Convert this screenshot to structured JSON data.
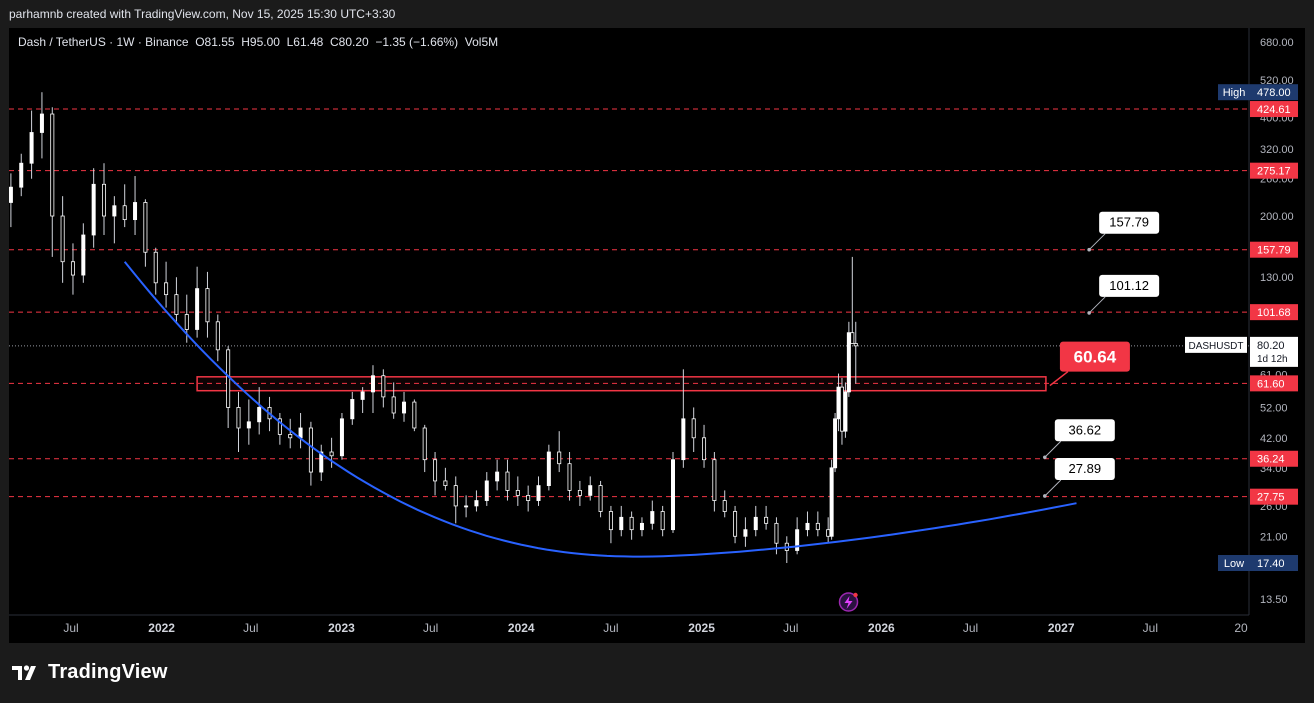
{
  "header": {
    "author_line": "parhamnb created with TradingView.com, Nov 15, 2025 15:30 UTC+3:30"
  },
  "legend": {
    "symbol": "Dash / TetherUS · 1W · Binance",
    "open": "O81.55",
    "high": "H95.00",
    "low": "L61.48",
    "close": "C80.20",
    "change": "−1.35 (−1.66%)",
    "volume": "Vol5M"
  },
  "brand": {
    "name": "TradingView"
  },
  "colors": {
    "background": "#000000",
    "candle": "#ffffff",
    "level_line": "#f23645",
    "label_red": "#f23645",
    "curve": "#2962ff",
    "axis_text": "#b2b5be",
    "high_low_badge": "#1e3a6e"
  },
  "chart_data": {
    "type": "candlestick",
    "symbol": "DASHUSDT",
    "interval": "1W",
    "log_scale": true,
    "ylim": [
      12.5,
      720
    ],
    "price_axis_ticks": [
      680,
      520,
      400,
      320,
      260,
      200,
      130,
      52,
      42,
      34,
      26,
      21,
      13.5
    ],
    "price_axis_labels": [
      "680.00",
      "520.00",
      "400.00",
      "320.00",
      "260.00",
      "200.00",
      "130.00",
      "52.00",
      "42.00",
      "34.00",
      "26.00",
      "21.00",
      "13.50"
    ],
    "time_axis_labels": [
      "Jul",
      "2022",
      "Jul",
      "2023",
      "Jul",
      "2024",
      "Jul",
      "2025",
      "Jul",
      "2026",
      "Jul",
      "2027",
      "Jul",
      "20"
    ],
    "time_axis_dates": [
      "2021-07-01",
      "2022-01-01",
      "2022-07-01",
      "2023-01-01",
      "2023-07-01",
      "2024-01-01",
      "2024-07-01",
      "2025-01-01",
      "2025-07-01",
      "2026-01-01",
      "2026-07-01",
      "2027-01-01",
      "2027-07-01",
      "2028-01-01"
    ],
    "bold_time_labels": [
      "2022",
      "2023",
      "2024",
      "2025",
      "2026",
      "2027"
    ],
    "horizontal_levels": [
      {
        "price": 424.61,
        "label": "424.61"
      },
      {
        "price": 275.17,
        "label": "275.17"
      },
      {
        "price": 157.79,
        "label": "157.79"
      },
      {
        "price": 101.68,
        "label": "101.68"
      },
      {
        "price": 61.6,
        "label": "61.60"
      },
      {
        "price": 36.24,
        "label": "36.24"
      },
      {
        "price": 27.75,
        "label": "27.75"
      }
    ],
    "current_price": {
      "symbol": "DASHUSDT",
      "price": 80.2,
      "label": "80.20",
      "countdown": "1d 12h"
    },
    "high_marker": {
      "title": "High",
      "price": 478.0,
      "label": "478.00"
    },
    "low_marker": {
      "title": "Low",
      "price": 17.4,
      "label": "17.40"
    },
    "partial_axis_label": "61.00",
    "resistance_zone": {
      "start": "2022-03-14",
      "end": "2026-12-01",
      "low": 58.5,
      "high": 64.5
    },
    "target_callouts": [
      {
        "label": "157.79",
        "price": 157.79,
        "date": "2027-03-15"
      },
      {
        "label": "101.12",
        "price": 101.12,
        "date": "2027-03-15"
      },
      {
        "label": "36.62",
        "price": 36.62,
        "date": "2026-12-15"
      },
      {
        "label": "27.89",
        "price": 27.89,
        "date": "2026-12-15"
      }
    ],
    "zone_callout": {
      "label": "60.64",
      "price": 60.64,
      "date": "2026-12-01"
    },
    "cup_curve": {
      "start_date": "2021-10-18",
      "start_price": 145,
      "bottom_date": "2024-09-01",
      "bottom_price": 18.2,
      "end_date": "2027-02-01",
      "end_price": 26.5
    },
    "candles": [
      {
        "date": "2021-03-01",
        "o": 220,
        "h": 270,
        "l": 185,
        "c": 245
      },
      {
        "date": "2021-03-22",
        "o": 245,
        "h": 310,
        "l": 230,
        "c": 290
      },
      {
        "date": "2021-04-12",
        "o": 290,
        "h": 420,
        "l": 260,
        "c": 360
      },
      {
        "date": "2021-05-03",
        "o": 360,
        "h": 478,
        "l": 300,
        "c": 410
      },
      {
        "date": "2021-05-24",
        "o": 410,
        "h": 430,
        "l": 150,
        "c": 200
      },
      {
        "date": "2021-06-14",
        "o": 200,
        "h": 230,
        "l": 125,
        "c": 145
      },
      {
        "date": "2021-07-05",
        "o": 145,
        "h": 165,
        "l": 115,
        "c": 132
      },
      {
        "date": "2021-07-26",
        "o": 132,
        "h": 190,
        "l": 125,
        "c": 175
      },
      {
        "date": "2021-08-16",
        "o": 175,
        "h": 280,
        "l": 160,
        "c": 250
      },
      {
        "date": "2021-09-06",
        "o": 250,
        "h": 290,
        "l": 175,
        "c": 200
      },
      {
        "date": "2021-09-27",
        "o": 200,
        "h": 230,
        "l": 165,
        "c": 215
      },
      {
        "date": "2021-10-18",
        "o": 215,
        "h": 250,
        "l": 185,
        "c": 195
      },
      {
        "date": "2021-11-08",
        "o": 195,
        "h": 265,
        "l": 175,
        "c": 220
      },
      {
        "date": "2021-11-29",
        "o": 220,
        "h": 225,
        "l": 140,
        "c": 155
      },
      {
        "date": "2021-12-20",
        "o": 155,
        "h": 160,
        "l": 115,
        "c": 125
      },
      {
        "date": "2022-01-10",
        "o": 125,
        "h": 145,
        "l": 105,
        "c": 115
      },
      {
        "date": "2022-01-31",
        "o": 115,
        "h": 130,
        "l": 95,
        "c": 100
      },
      {
        "date": "2022-02-21",
        "o": 100,
        "h": 115,
        "l": 82,
        "c": 90
      },
      {
        "date": "2022-03-14",
        "o": 90,
        "h": 140,
        "l": 85,
        "c": 120
      },
      {
        "date": "2022-04-04",
        "o": 120,
        "h": 135,
        "l": 85,
        "c": 95
      },
      {
        "date": "2022-04-25",
        "o": 95,
        "h": 100,
        "l": 72,
        "c": 78
      },
      {
        "date": "2022-05-16",
        "o": 78,
        "h": 80,
        "l": 45,
        "c": 52
      },
      {
        "date": "2022-06-06",
        "o": 52,
        "h": 58,
        "l": 38,
        "c": 45
      },
      {
        "date": "2022-06-27",
        "o": 45,
        "h": 55,
        "l": 40,
        "c": 47
      },
      {
        "date": "2022-07-18",
        "o": 47,
        "h": 60,
        "l": 43,
        "c": 52
      },
      {
        "date": "2022-08-08",
        "o": 52,
        "h": 56,
        "l": 44,
        "c": 48
      },
      {
        "date": "2022-08-29",
        "o": 48,
        "h": 50,
        "l": 40,
        "c": 43
      },
      {
        "date": "2022-09-19",
        "o": 43,
        "h": 48,
        "l": 39,
        "c": 42
      },
      {
        "date": "2022-10-10",
        "o": 42,
        "h": 50,
        "l": 39,
        "c": 45
      },
      {
        "date": "2022-10-31",
        "o": 45,
        "h": 47,
        "l": 30,
        "c": 33
      },
      {
        "date": "2022-11-21",
        "o": 33,
        "h": 40,
        "l": 31,
        "c": 38
      },
      {
        "date": "2022-12-12",
        "o": 38,
        "h": 42,
        "l": 34,
        "c": 37
      },
      {
        "date": "2023-01-02",
        "o": 37,
        "h": 50,
        "l": 36,
        "c": 48
      },
      {
        "date": "2023-01-23",
        "o": 48,
        "h": 58,
        "l": 46,
        "c": 55
      },
      {
        "date": "2023-02-13",
        "o": 55,
        "h": 60,
        "l": 50,
        "c": 58
      },
      {
        "date": "2023-03-06",
        "o": 58,
        "h": 70,
        "l": 50,
        "c": 65
      },
      {
        "date": "2023-03-27",
        "o": 65,
        "h": 68,
        "l": 52,
        "c": 56
      },
      {
        "date": "2023-04-17",
        "o": 56,
        "h": 62,
        "l": 48,
        "c": 50
      },
      {
        "date": "2023-05-08",
        "o": 50,
        "h": 58,
        "l": 47,
        "c": 54
      },
      {
        "date": "2023-05-29",
        "o": 54,
        "h": 55,
        "l": 44,
        "c": 45
      },
      {
        "date": "2023-06-19",
        "o": 45,
        "h": 46,
        "l": 33,
        "c": 36
      },
      {
        "date": "2023-07-10",
        "o": 36,
        "h": 38,
        "l": 28,
        "c": 31
      },
      {
        "date": "2023-07-31",
        "o": 31,
        "h": 34,
        "l": 29,
        "c": 30
      },
      {
        "date": "2023-08-21",
        "o": 30,
        "h": 32,
        "l": 23,
        "c": 26
      },
      {
        "date": "2023-09-11",
        "o": 26,
        "h": 28,
        "l": 24,
        "c": 26
      },
      {
        "date": "2023-10-02",
        "o": 26,
        "h": 29,
        "l": 25,
        "c": 27
      },
      {
        "date": "2023-10-23",
        "o": 27,
        "h": 33,
        "l": 26,
        "c": 31
      },
      {
        "date": "2023-11-13",
        "o": 31,
        "h": 36,
        "l": 29,
        "c": 33
      },
      {
        "date": "2023-12-04",
        "o": 33,
        "h": 36,
        "l": 27,
        "c": 29
      },
      {
        "date": "2023-12-25",
        "o": 29,
        "h": 32,
        "l": 26,
        "c": 28
      },
      {
        "date": "2024-01-15",
        "o": 28,
        "h": 30,
        "l": 25,
        "c": 27
      },
      {
        "date": "2024-02-05",
        "o": 27,
        "h": 32,
        "l": 26,
        "c": 30
      },
      {
        "date": "2024-02-26",
        "o": 30,
        "h": 40,
        "l": 29,
        "c": 38
      },
      {
        "date": "2024-03-18",
        "o": 38,
        "h": 44,
        "l": 33,
        "c": 35
      },
      {
        "date": "2024-04-08",
        "o": 35,
        "h": 38,
        "l": 27,
        "c": 29
      },
      {
        "date": "2024-04-29",
        "o": 29,
        "h": 31,
        "l": 26,
        "c": 28
      },
      {
        "date": "2024-05-20",
        "o": 28,
        "h": 32,
        "l": 27,
        "c": 30
      },
      {
        "date": "2024-06-10",
        "o": 30,
        "h": 31,
        "l": 24,
        "c": 25
      },
      {
        "date": "2024-07-01",
        "o": 25,
        "h": 26,
        "l": 20,
        "c": 22
      },
      {
        "date": "2024-07-22",
        "o": 22,
        "h": 26,
        "l": 21,
        "c": 24
      },
      {
        "date": "2024-08-12",
        "o": 24,
        "h": 25,
        "l": 20.5,
        "c": 22
      },
      {
        "date": "2024-09-02",
        "o": 22,
        "h": 24,
        "l": 21,
        "c": 23
      },
      {
        "date": "2024-09-23",
        "o": 23,
        "h": 27,
        "l": 22,
        "c": 25
      },
      {
        "date": "2024-10-14",
        "o": 25,
        "h": 26,
        "l": 21,
        "c": 22
      },
      {
        "date": "2024-11-04",
        "o": 22,
        "h": 38,
        "l": 21.5,
        "c": 36
      },
      {
        "date": "2024-11-25",
        "o": 36,
        "h": 68,
        "l": 34,
        "c": 48
      },
      {
        "date": "2024-12-16",
        "o": 48,
        "h": 52,
        "l": 38,
        "c": 42
      },
      {
        "date": "2025-01-06",
        "o": 42,
        "h": 46,
        "l": 34,
        "c": 36
      },
      {
        "date": "2025-01-27",
        "o": 36,
        "h": 38,
        "l": 25,
        "c": 27
      },
      {
        "date": "2025-02-17",
        "o": 27,
        "h": 29,
        "l": 24,
        "c": 25
      },
      {
        "date": "2025-03-10",
        "o": 25,
        "h": 26,
        "l": 20,
        "c": 21
      },
      {
        "date": "2025-03-31",
        "o": 21,
        "h": 24,
        "l": 19.5,
        "c": 22
      },
      {
        "date": "2025-04-21",
        "o": 22,
        "h": 26,
        "l": 21,
        "c": 24
      },
      {
        "date": "2025-05-12",
        "o": 24,
        "h": 26,
        "l": 22,
        "c": 23
      },
      {
        "date": "2025-06-02",
        "o": 23,
        "h": 24,
        "l": 18.5,
        "c": 20
      },
      {
        "date": "2025-06-23",
        "o": 20,
        "h": 21,
        "l": 17.4,
        "c": 19
      },
      {
        "date": "2025-07-14",
        "o": 19,
        "h": 24,
        "l": 18.5,
        "c": 22
      },
      {
        "date": "2025-08-04",
        "o": 22,
        "h": 25,
        "l": 21,
        "c": 23
      },
      {
        "date": "2025-08-25",
        "o": 23,
        "h": 25,
        "l": 21,
        "c": 22
      },
      {
        "date": "2025-09-15",
        "o": 22,
        "h": 24,
        "l": 20,
        "c": 21
      },
      {
        "date": "2025-09-22",
        "o": 21,
        "h": 36,
        "l": 20.5,
        "c": 34
      },
      {
        "date": "2025-09-29",
        "o": 34,
        "h": 50,
        "l": 33,
        "c": 48
      },
      {
        "date": "2025-10-06",
        "o": 48,
        "h": 66,
        "l": 44,
        "c": 60
      },
      {
        "date": "2025-10-13",
        "o": 60,
        "h": 64,
        "l": 40,
        "c": 44
      },
      {
        "date": "2025-10-20",
        "o": 44,
        "h": 62,
        "l": 42,
        "c": 58
      },
      {
        "date": "2025-10-27",
        "o": 58,
        "h": 95,
        "l": 56,
        "c": 88
      },
      {
        "date": "2025-11-03",
        "o": 88,
        "h": 150,
        "l": 85,
        "c": 81.55
      },
      {
        "date": "2025-11-10",
        "o": 81.55,
        "h": 95,
        "l": 61.48,
        "c": 80.2
      }
    ]
  }
}
